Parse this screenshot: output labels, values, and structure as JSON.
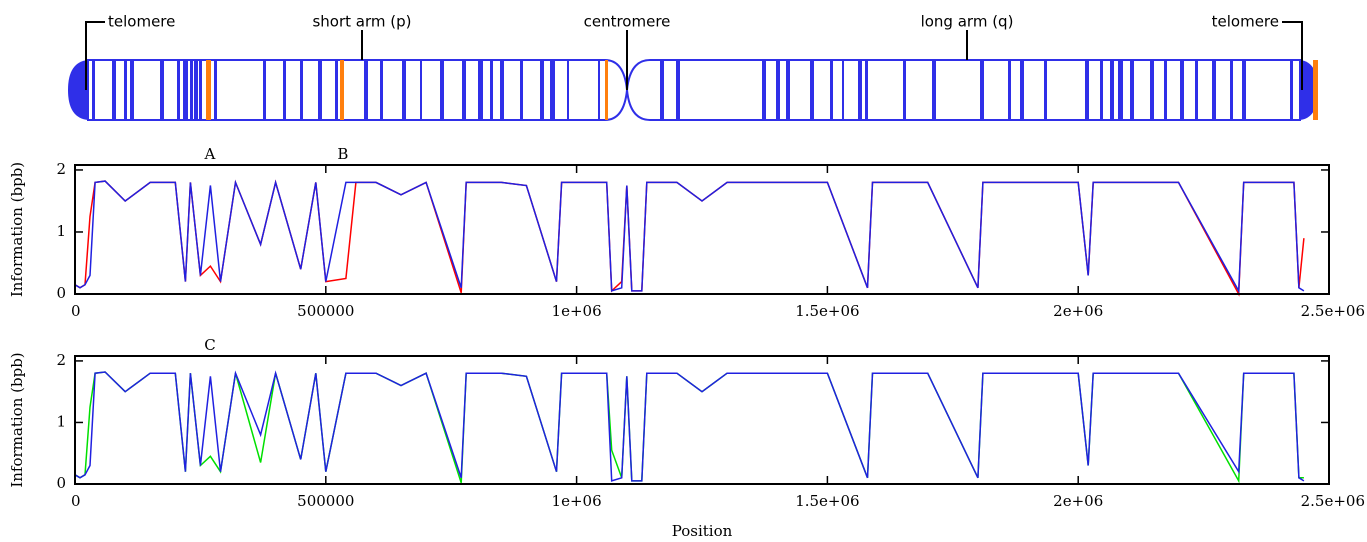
{
  "ideogram": {
    "labels": [
      "telomere",
      "short arm (p)",
      "centromere",
      "long arm (q)",
      "telomere"
    ]
  },
  "chart_data": [
    {
      "type": "line",
      "ylabel": "Information (bpb)",
      "xlim": [
        0,
        2500000
      ],
      "ylim": [
        0,
        2.08
      ],
      "xticks": [
        0,
        500000,
        {
          "value": 1000000,
          "label": "1e+06"
        },
        {
          "value": 1500000,
          "label": "1.5e+06"
        },
        {
          "value": 2000000,
          "label": "2e+06"
        },
        {
          "value": 2500000,
          "label": "2.5e+06"
        }
      ],
      "yticks": [
        0,
        1,
        2
      ],
      "annotations": [
        {
          "text": "A",
          "x": 269000
        },
        {
          "text": "B",
          "x": 534000
        }
      ],
      "x": [
        0,
        10000,
        20000,
        30000,
        40000,
        60000,
        100000,
        150000,
        200000,
        220000,
        230000,
        250000,
        270000,
        290000,
        320000,
        370000,
        400000,
        450000,
        480000,
        500000,
        540000,
        560000,
        600000,
        650000,
        700000,
        770000,
        780000,
        850000,
        900000,
        960000,
        970000,
        1000000,
        1060000,
        1070000,
        1090000,
        1100000,
        1110000,
        1130000,
        1140000,
        1150000,
        1200000,
        1250000,
        1300000,
        1400000,
        1500000,
        1580000,
        1590000,
        1700000,
        1800000,
        1810000,
        1900000,
        2000000,
        2020000,
        2030000,
        2100000,
        2200000,
        2320000,
        2330000,
        2400000,
        2430000,
        2440000,
        2450000
      ],
      "series": [
        {
          "color": "#ff0000",
          "values": [
            0.15,
            0.1,
            0.15,
            1.25,
            1.8,
            1.82,
            1.5,
            1.8,
            1.8,
            0.2,
            1.8,
            0.3,
            0.45,
            0.2,
            1.8,
            0.8,
            1.8,
            0.4,
            1.8,
            0.2,
            0.25,
            1.8,
            1.8,
            1.6,
            1.8,
            0.02,
            1.8,
            1.8,
            1.75,
            0.2,
            1.8,
            1.8,
            1.8,
            0.05,
            0.2,
            1.75,
            0.05,
            0.05,
            1.8,
            1.8,
            1.8,
            1.5,
            1.8,
            1.8,
            1.8,
            0.1,
            1.8,
            1.8,
            0.1,
            1.8,
            1.8,
            1.8,
            0.3,
            1.8,
            1.8,
            1.8,
            0.0,
            1.8,
            1.8,
            1.8,
            0.1,
            0.9
          ]
        },
        {
          "color": "#2020e0",
          "values": [
            0.15,
            0.1,
            0.15,
            0.3,
            1.8,
            1.82,
            1.5,
            1.8,
            1.8,
            0.2,
            1.8,
            0.3,
            1.75,
            0.2,
            1.8,
            0.8,
            1.8,
            0.4,
            1.8,
            0.2,
            1.8,
            1.8,
            1.8,
            1.6,
            1.8,
            0.1,
            1.8,
            1.8,
            1.75,
            0.2,
            1.8,
            1.8,
            1.8,
            0.05,
            0.1,
            1.75,
            0.05,
            0.05,
            1.8,
            1.8,
            1.8,
            1.5,
            1.8,
            1.8,
            1.8,
            0.1,
            1.8,
            1.8,
            0.1,
            1.8,
            1.8,
            1.8,
            0.3,
            1.8,
            1.8,
            1.8,
            0.05,
            1.8,
            1.8,
            1.8,
            0.1,
            0.05
          ]
        }
      ]
    },
    {
      "type": "line",
      "ylabel": "Information (bpb)",
      "xlabel": "Position",
      "xlim": [
        0,
        2500000
      ],
      "ylim": [
        0,
        2.08
      ],
      "xticks": [
        0,
        500000,
        {
          "value": 1000000,
          "label": "1e+06"
        },
        {
          "value": 1500000,
          "label": "1.5e+06"
        },
        {
          "value": 2000000,
          "label": "2e+06"
        },
        {
          "value": 2500000,
          "label": "2.5e+06"
        }
      ],
      "yticks": [
        0,
        1,
        2
      ],
      "annotations": [
        {
          "text": "C",
          "x": 269000
        }
      ],
      "x": [
        0,
        10000,
        20000,
        30000,
        40000,
        60000,
        100000,
        150000,
        200000,
        220000,
        230000,
        250000,
        270000,
        290000,
        320000,
        370000,
        400000,
        450000,
        480000,
        500000,
        540000,
        560000,
        600000,
        650000,
        700000,
        770000,
        780000,
        850000,
        900000,
        960000,
        970000,
        1000000,
        1060000,
        1070000,
        1090000,
        1100000,
        1110000,
        1130000,
        1140000,
        1150000,
        1200000,
        1250000,
        1300000,
        1400000,
        1500000,
        1580000,
        1590000,
        1700000,
        1800000,
        1810000,
        1900000,
        2000000,
        2020000,
        2030000,
        2100000,
        2200000,
        2320000,
        2330000,
        2400000,
        2430000,
        2440000,
        2450000
      ],
      "series": [
        {
          "color": "#00e000",
          "values": [
            0.15,
            0.1,
            0.15,
            1.25,
            1.8,
            1.82,
            1.5,
            1.8,
            1.8,
            0.2,
            1.8,
            0.3,
            0.45,
            0.2,
            1.8,
            0.35,
            1.8,
            0.4,
            1.8,
            0.2,
            1.8,
            1.8,
            1.8,
            1.6,
            1.8,
            0.02,
            1.8,
            1.8,
            1.75,
            0.2,
            1.8,
            1.8,
            1.8,
            0.55,
            0.1,
            1.75,
            0.05,
            0.05,
            1.8,
            1.8,
            1.8,
            1.5,
            1.8,
            1.8,
            1.8,
            0.1,
            1.8,
            1.8,
            0.1,
            1.8,
            1.8,
            1.8,
            0.3,
            1.8,
            1.8,
            1.8,
            0.05,
            1.8,
            1.8,
            1.8,
            0.1,
            0.1
          ]
        },
        {
          "color": "#2020e0",
          "values": [
            0.15,
            0.1,
            0.15,
            0.3,
            1.8,
            1.82,
            1.5,
            1.8,
            1.8,
            0.2,
            1.8,
            0.3,
            1.75,
            0.2,
            1.8,
            0.8,
            1.8,
            0.4,
            1.8,
            0.2,
            1.8,
            1.8,
            1.8,
            1.6,
            1.8,
            0.1,
            1.8,
            1.8,
            1.75,
            0.2,
            1.8,
            1.8,
            1.8,
            0.05,
            0.1,
            1.75,
            0.05,
            0.05,
            1.8,
            1.8,
            1.8,
            1.5,
            1.8,
            1.8,
            1.8,
            0.1,
            1.8,
            1.8,
            0.1,
            1.8,
            1.8,
            1.8,
            0.3,
            1.8,
            1.8,
            1.8,
            0.2,
            1.8,
            1.8,
            1.8,
            0.1,
            0.05
          ]
        }
      ]
    }
  ]
}
